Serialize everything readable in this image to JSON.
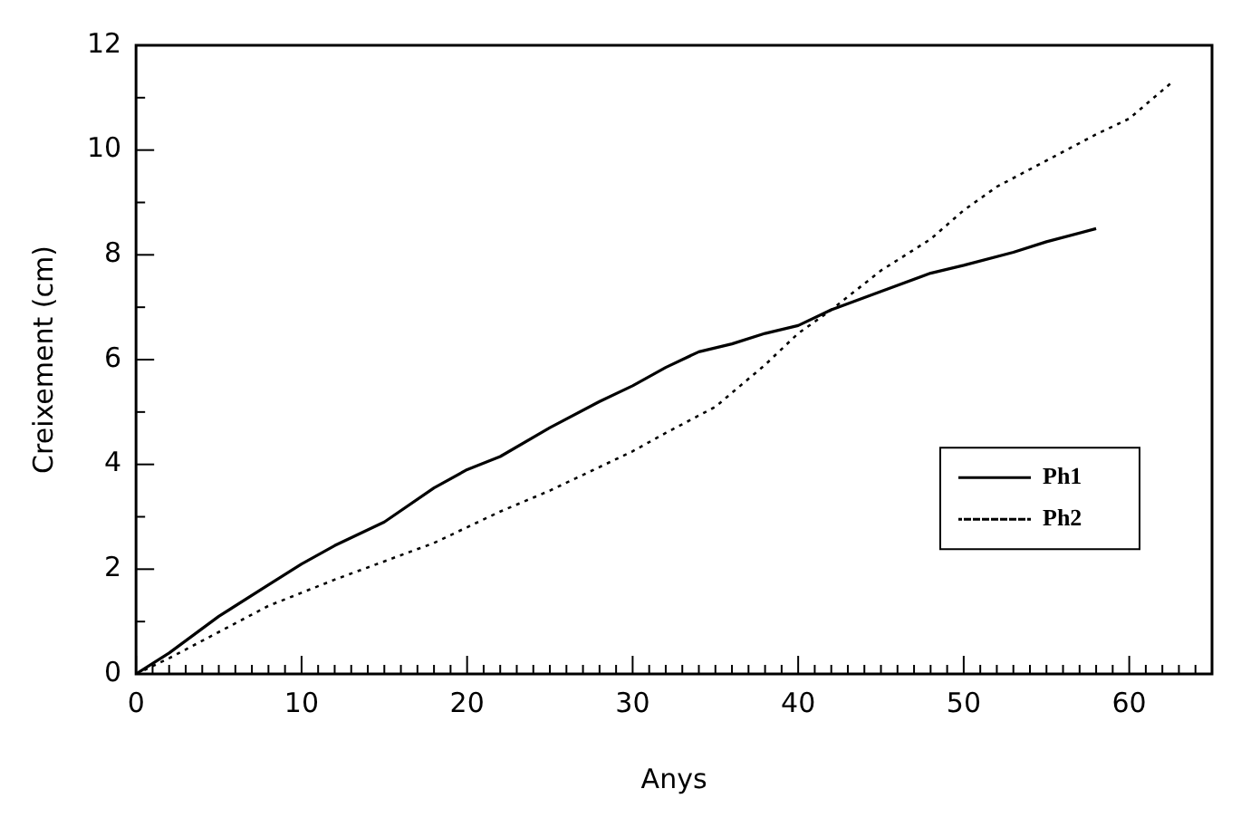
{
  "chart_data": {
    "type": "line",
    "xlabel": "Anys",
    "ylabel": "Creixement (cm)",
    "xlim": [
      0,
      65
    ],
    "ylim": [
      0,
      12
    ],
    "xticks": [
      0,
      10,
      20,
      30,
      40,
      50,
      60
    ],
    "yticks": [
      0,
      2,
      4,
      6,
      8,
      10,
      12
    ],
    "grid": false,
    "legend": "right",
    "marker": "none",
    "series": [
      {
        "name": "Ph1",
        "color": "#000000",
        "line_style": "solid",
        "x": [
          0,
          2,
          5,
          8,
          10,
          12,
          15,
          18,
          20,
          22,
          25,
          28,
          30,
          32,
          34,
          36,
          38,
          40,
          42,
          45,
          48,
          50,
          53,
          55,
          58
        ],
        "values": [
          0,
          0.4,
          1.1,
          1.7,
          2.1,
          2.45,
          2.9,
          3.55,
          3.9,
          4.15,
          4.7,
          5.2,
          5.5,
          5.85,
          6.15,
          6.3,
          6.5,
          6.65,
          6.95,
          7.3,
          7.65,
          7.8,
          8.05,
          8.25,
          8.5
        ]
      },
      {
        "name": "Ph2",
        "color": "#000000",
        "line_style": "dotted",
        "x": [
          0,
          2,
          5,
          8,
          10,
          12,
          15,
          18,
          20,
          22,
          25,
          28,
          30,
          32,
          35,
          38,
          40,
          42,
          45,
          48,
          50,
          52,
          55,
          58,
          60,
          62.6
        ],
        "values": [
          0,
          0.3,
          0.8,
          1.3,
          1.55,
          1.8,
          2.15,
          2.5,
          2.8,
          3.1,
          3.5,
          3.95,
          4.25,
          4.6,
          5.1,
          5.9,
          6.5,
          6.95,
          7.7,
          8.3,
          8.85,
          9.3,
          9.8,
          10.3,
          10.6,
          11.3
        ]
      }
    ]
  }
}
